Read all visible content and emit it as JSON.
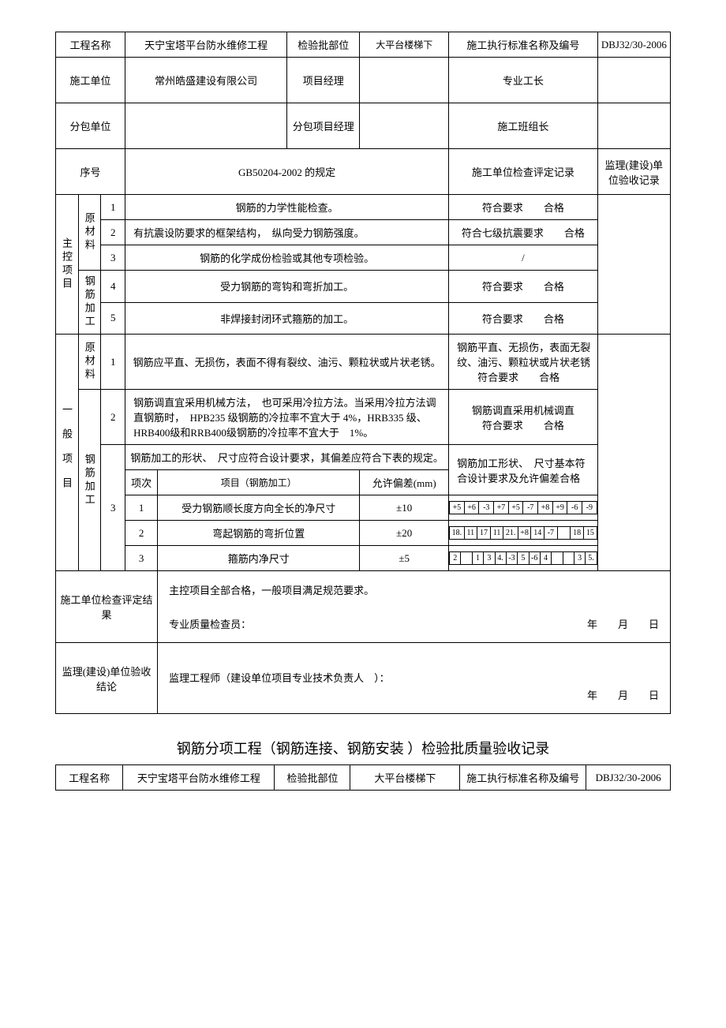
{
  "header1": {
    "projNameLabel": "工程名称",
    "projName": "天宁宝塔平台防水维修工程",
    "batchLabel": "检验批部位",
    "batchVal": "大平台楼梯下",
    "stdLabel": "施工执行标准名称及编号",
    "stdVal": "DBJ32/30-2006",
    "contractorLabel": "施工单位",
    "contractor": "常州皓盛建设有限公司",
    "pmLabel": "项目经理",
    "foremanLabel": "专业工长",
    "subLabel": "分包单位",
    "subPmLabel": "分包项目经理",
    "teamLeadLabel": "施工班组长"
  },
  "colHead": {
    "seq": "序号",
    "spec": "GB50204-2002 的规定",
    "check": "施工单位检查评定记录",
    "super": "监理(建设)单位验收记录"
  },
  "groups": {
    "main": "主控项目",
    "general": "一般项目",
    "rawMat": "原材料",
    "rebarProc": "钢筋加工"
  },
  "mainItems": [
    {
      "n": "1",
      "spec": "钢筋的力学性能检查。",
      "res": "符合要求　　合格"
    },
    {
      "n": "2",
      "spec": "有抗震设防要求的框架结构，　纵向受力钢筋强度。",
      "res": "符合七级抗震要求　　合格"
    },
    {
      "n": "3",
      "spec": "钢筋的化学成份检验或其他专项检验。",
      "res": "/"
    },
    {
      "n": "4",
      "spec": "受力钢筋的弯钩和弯折加工。",
      "res": "符合要求　　合格"
    },
    {
      "n": "5",
      "spec": "非焊接封闭环式箍筋的加工。",
      "res": "符合要求　　合格"
    }
  ],
  "genItems": {
    "i1": {
      "n": "1",
      "spec": "钢筋应平直、无损伤，表面不得有裂纹、油污、颗粒状或片状老锈。",
      "res": "钢筋平直、无损伤，表面无裂纹、油污、颗粒状或片状老锈\n　　符合要求　　合格"
    },
    "i2": {
      "n": "2",
      "spec": "钢筋调直宜采用机械方法，　也可采用冷拉方法。当采用冷拉方法调直钢筋时，　HPB235 级钢筋的冷拉率不宜大于 4%，HRB335 级、HRB400级和RRB400级钢筋的冷拉率不宜大于　1%。",
      "res": "钢筋调直采用机械调直\n符合要求　　合格"
    },
    "i3": {
      "n": "3",
      "specHead": "钢筋加工的形状、　尺寸应符合设计要求，其偏差应符合下表的规定。",
      "resHead": "钢筋加工形状、　尺寸基本符合设计要求及允许偏差合格",
      "sub": {
        "c1": "项次",
        "c2": "项目（钢筋加工）",
        "c3": "允许偏差(mm)",
        "rows": [
          {
            "n": "1",
            "name": "受力钢筋顺长度方向全长的净尺寸",
            "tol": "±10",
            "m": [
              "+5",
              "+6",
              "-3",
              "+7",
              "+5",
              "-7",
              "+8",
              "+9",
              "-6",
              "-9"
            ]
          },
          {
            "n": "2",
            "name": "弯起钢筋的弯折位置",
            "tol": "±20",
            "m": [
              "18.",
              "11",
              "17",
              "11",
              "21.",
              "+8",
              "14",
              "-7",
              "",
              "18",
              "15"
            ]
          },
          {
            "n": "3",
            "name": "箍筋内净尺寸",
            "tol": "±5",
            "m": [
              "2",
              "",
              "1",
              "3",
              "4.",
              "-3",
              "5",
              "-6",
              "4",
              "",
              "",
              "3",
              "5."
            ]
          }
        ]
      }
    }
  },
  "footer": {
    "checkLabel": "施工单位检查评定结果",
    "checkText1": "主控项目全部合格，一般项目满足规范要求。",
    "checkText2": "专业质量检查员：",
    "superLabel": "监理(建设)单位验收结论",
    "superText": "监理工程师（建设单位项目专业技术负责人　）：",
    "date": "年　　月　　日"
  },
  "title2": "钢筋分项工程（钢筋连接、钢筋安装 ）检验批质量验收记录",
  "header2": {
    "projNameLabel": "工程名称",
    "projName": "天宁宝塔平台防水维修工程",
    "batchLabel": "检验批部位",
    "batchVal": "大平台楼梯下",
    "stdLabel": "施工执行标准名称及编号",
    "stdVal": "DBJ32/30-2006"
  }
}
